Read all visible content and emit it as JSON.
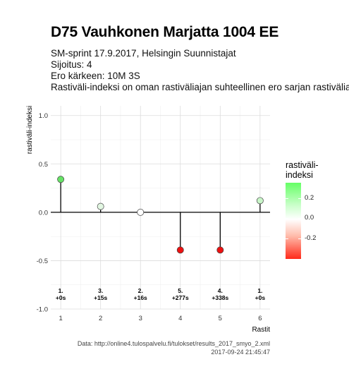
{
  "title": "D75 Vauhkonen Marjatta 1004 EE",
  "subtitle_lines": [
    "SM-sprint 17.9.2017, Helsingin Suunnistajat",
    "Sijoitus: 4",
    "Ero kärkeen: 10M 3S",
    "Rastiväli-indeksi on oman rastiväliajan suhteellinen ero sarjan rastiväliajan"
  ],
  "caption": {
    "source": "Data: http://online4.tulospalvelu.fi/tulokset/results_2017_smyo_2.xml",
    "timestamp": "2017-09-24 21:45:47"
  },
  "legend": {
    "title_line1": "rastiväli-",
    "title_line2": "indeksi",
    "ticks": [
      "0.2",
      "0.0",
      "-0.2"
    ],
    "tick_values": [
      0.2,
      0.0,
      -0.2
    ],
    "range": [
      -0.4,
      0.35
    ],
    "color_high": "#66ff66",
    "color_mid": "#ffffff",
    "color_low": "#ff1a0a"
  },
  "chart_data": {
    "type": "scatter",
    "style": "lollipop",
    "xlabel": "Rastit",
    "ylabel": "rastiväli-indeksi",
    "x_ticks": [
      "1",
      "2",
      "3",
      "4",
      "5",
      "6"
    ],
    "y_ticks": [
      "-1.0",
      "-0.5",
      "0.0",
      "0.5",
      "1.0"
    ],
    "xlim": [
      0.75,
      6.25
    ],
    "ylim": [
      -1.0,
      1.1
    ],
    "grid": true,
    "x": [
      1,
      2,
      3,
      4,
      5,
      6
    ],
    "values": [
      0.34,
      0.06,
      0.0,
      -0.39,
      -0.39,
      0.12
    ],
    "rank_labels": [
      "1.",
      "3.",
      "2.",
      "5.",
      "4.",
      "1."
    ],
    "diff_labels": [
      "+0s",
      "+15s",
      "+16s",
      "+277s",
      "+338s",
      "+0s"
    ],
    "colors": [
      "#66e266",
      "#e2f7e2",
      "#ffffff",
      "#ee1111",
      "#ee1111",
      "#c8f5c8"
    ]
  }
}
